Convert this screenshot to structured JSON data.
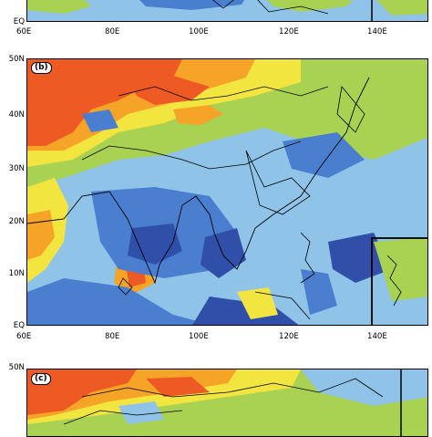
{
  "panels": [
    {
      "id": "a",
      "visible": "bottom-edge-only"
    },
    {
      "id": "b",
      "label": "(b)"
    },
    {
      "id": "c",
      "label": "(c)"
    }
  ],
  "axes": {
    "x_ticks": [
      "60E",
      "80E",
      "100E",
      "120E",
      "140E"
    ],
    "y_ticks_b": [
      "50N",
      "40N",
      "30N",
      "20N",
      "10N",
      "EQ"
    ],
    "y_ticks_a_bottom": "EQ",
    "y_ticks_c_top": "50N"
  },
  "colors": {
    "dark_blue": "#2f4fa8",
    "mid_blue": "#4a7fd0",
    "light_blue": "#8fc3e8",
    "green": "#a9d253",
    "yellow": "#f2e540",
    "orange": "#f5a428",
    "red_orange": "#ee5a24",
    "land_border": "#000000"
  },
  "chart_data": {
    "type": "heatmap",
    "title": "",
    "xlim": [
      "60E",
      "150E"
    ],
    "ylim": [
      "EQ",
      "50N"
    ],
    "grid": false,
    "legend": "none"
  }
}
